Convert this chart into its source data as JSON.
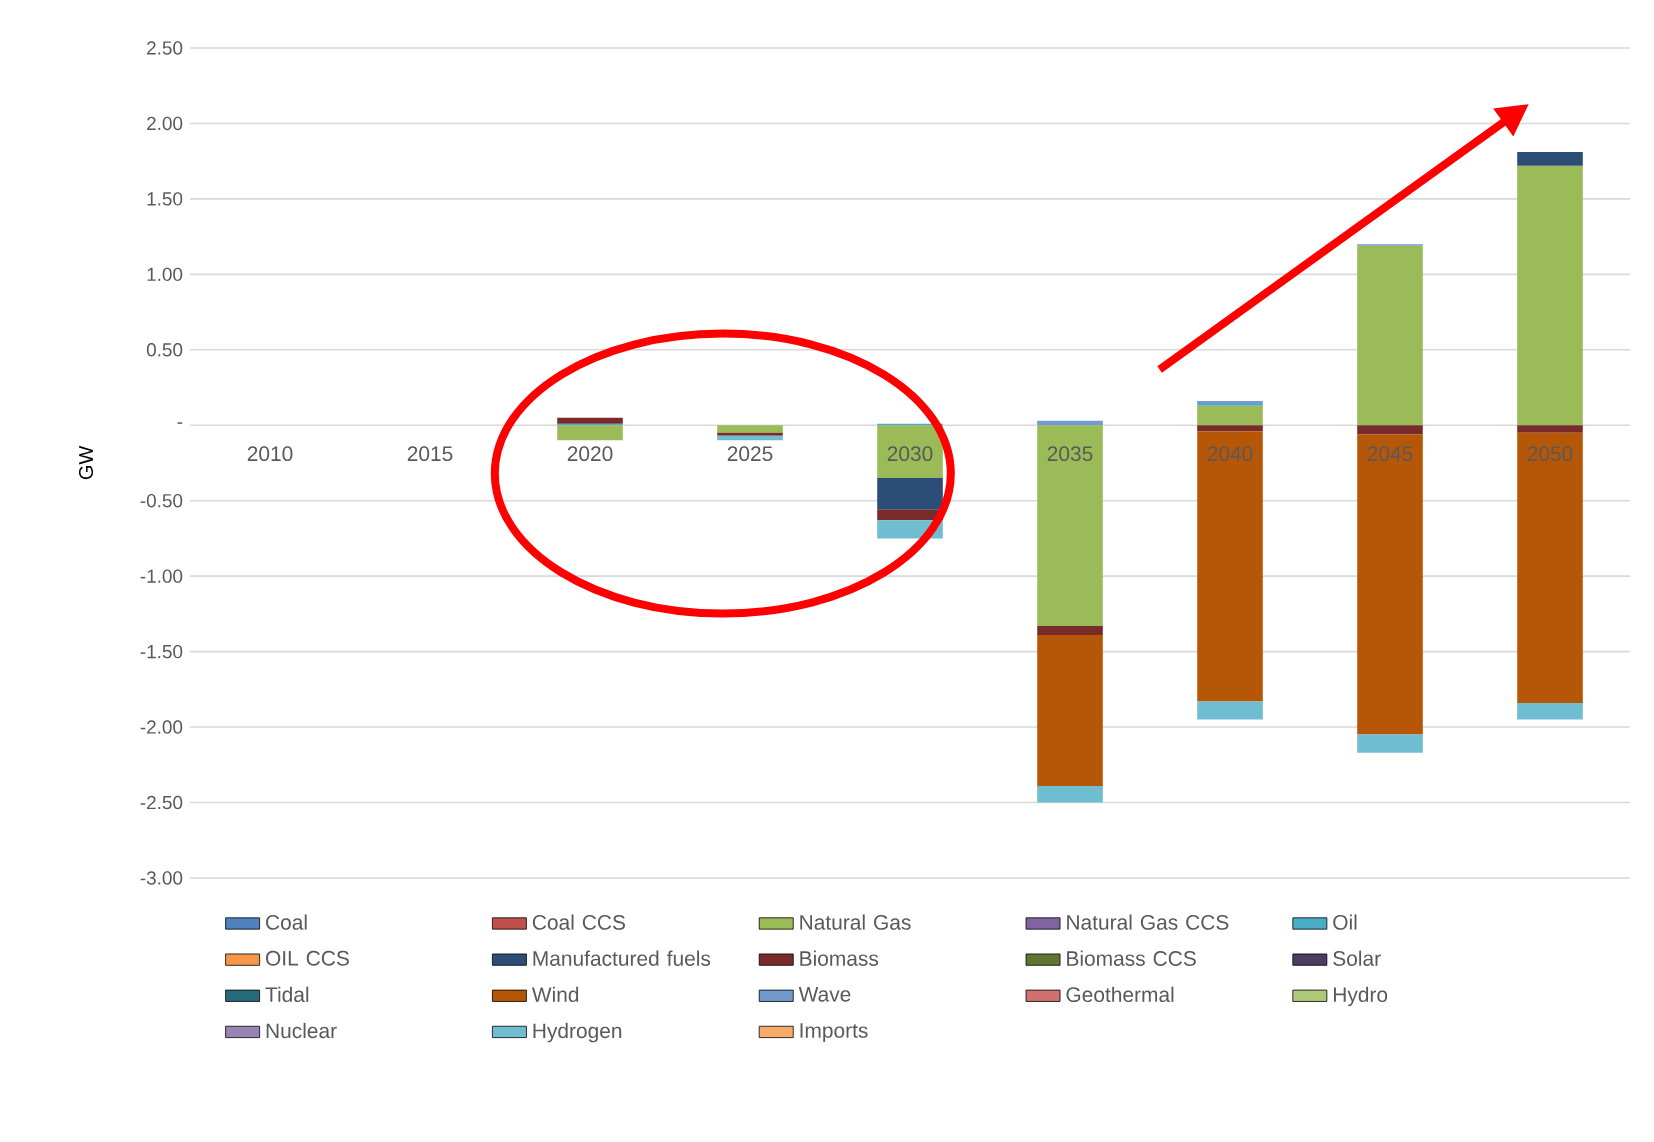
{
  "chart_data": {
    "type": "bar",
    "stacked": true,
    "ylabel": "GW",
    "categories": [
      "2010",
      "2015",
      "2020",
      "2025",
      "2030",
      "2035",
      "2040",
      "2045",
      "2050"
    ],
    "series": [
      {
        "name": "Coal",
        "color": "#4f81bd",
        "values": [
          0,
          0,
          0,
          0,
          0,
          0,
          0,
          0,
          0
        ]
      },
      {
        "name": "Coal CCS",
        "color": "#c0504d",
        "values": [
          0,
          0,
          0,
          0,
          0,
          0,
          0,
          0,
          0
        ]
      },
      {
        "name": "Natural Gas",
        "color": "#9bbb59",
        "values": [
          0,
          0,
          -0.1,
          -0.05,
          -0.35,
          -1.33,
          0.13,
          1.19,
          1.72
        ]
      },
      {
        "name": "Natural Gas CCS",
        "color": "#8064a2",
        "values": [
          0,
          0,
          0,
          0,
          0,
          0,
          0,
          0,
          0
        ]
      },
      {
        "name": "Oil",
        "color": "#4bacc6",
        "values": [
          0,
          0,
          0.01,
          0,
          0.01,
          0,
          0.01,
          0,
          0
        ]
      },
      {
        "name": "OIL CCS",
        "color": "#f79646",
        "values": [
          0,
          0,
          0,
          0,
          0,
          0,
          0,
          0,
          0
        ]
      },
      {
        "name": "Manufactured fuels",
        "color": "#2c4d75",
        "values": [
          0,
          0,
          0,
          0,
          -0.21,
          0,
          0,
          0,
          0.09
        ]
      },
      {
        "name": "Biomass",
        "color": "#772c2a",
        "values": [
          0,
          0,
          0.04,
          -0.02,
          -0.07,
          -0.06,
          -0.04,
          -0.06,
          -0.05
        ]
      },
      {
        "name": "Biomass CCS",
        "color": "#5f7530",
        "values": [
          0,
          0,
          0,
          0,
          0,
          0,
          0,
          0,
          0
        ]
      },
      {
        "name": "Solar",
        "color": "#4d3b62",
        "values": [
          0,
          0,
          0,
          0,
          0,
          0,
          0,
          0,
          0
        ]
      },
      {
        "name": "Tidal",
        "color": "#276a7c",
        "values": [
          0,
          0,
          0,
          0,
          0,
          0,
          0,
          0,
          0
        ]
      },
      {
        "name": "Wind",
        "color": "#b65708",
        "values": [
          0,
          0,
          0,
          0,
          0,
          -1.0,
          -1.79,
          -1.99,
          -1.79
        ]
      },
      {
        "name": "Wave",
        "color": "#729aca",
        "values": [
          0,
          0,
          0,
          0,
          0,
          0.03,
          0.02,
          0.01,
          0
        ]
      },
      {
        "name": "Geothermal",
        "color": "#d0716f",
        "values": [
          0,
          0,
          0,
          0,
          0,
          0,
          0,
          0,
          0
        ]
      },
      {
        "name": "Hydro",
        "color": "#afc97a",
        "values": [
          0,
          0,
          0,
          0,
          0,
          0,
          0,
          0,
          0
        ]
      },
      {
        "name": "Nuclear",
        "color": "#9983b5",
        "values": [
          0,
          0,
          0,
          0,
          0,
          0,
          0,
          0,
          0
        ]
      },
      {
        "name": "Hydrogen",
        "color": "#6fbdd1",
        "values": [
          0,
          0,
          0,
          -0.03,
          -0.12,
          -0.11,
          -0.12,
          -0.12,
          -0.11
        ]
      },
      {
        "name": "Imports",
        "color": "#f9ab6b",
        "values": [
          0,
          0,
          0,
          0,
          0,
          0,
          0,
          0,
          0
        ]
      }
    ],
    "ylim": [
      -3,
      2.5
    ],
    "yticks": [
      {
        "value": 2.5,
        "label": "2.50"
      },
      {
        "value": 2,
        "label": "2.00"
      },
      {
        "value": 1.5,
        "label": "1.50"
      },
      {
        "value": 1,
        "label": "1.00"
      },
      {
        "value": 0.5,
        "label": "0.50"
      },
      {
        "value": 0,
        "label": "-"
      },
      {
        "value": -0.5,
        "label": "-0.50"
      },
      {
        "value": -1,
        "label": "-1.00"
      },
      {
        "value": -1.5,
        "label": "-1.50"
      },
      {
        "value": -2,
        "label": "-2.00"
      },
      {
        "value": -2.5,
        "label": "-2.50"
      },
      {
        "value": -3,
        "label": "-3.00"
      }
    ],
    "grid": "y",
    "legend": "bottom"
  }
}
